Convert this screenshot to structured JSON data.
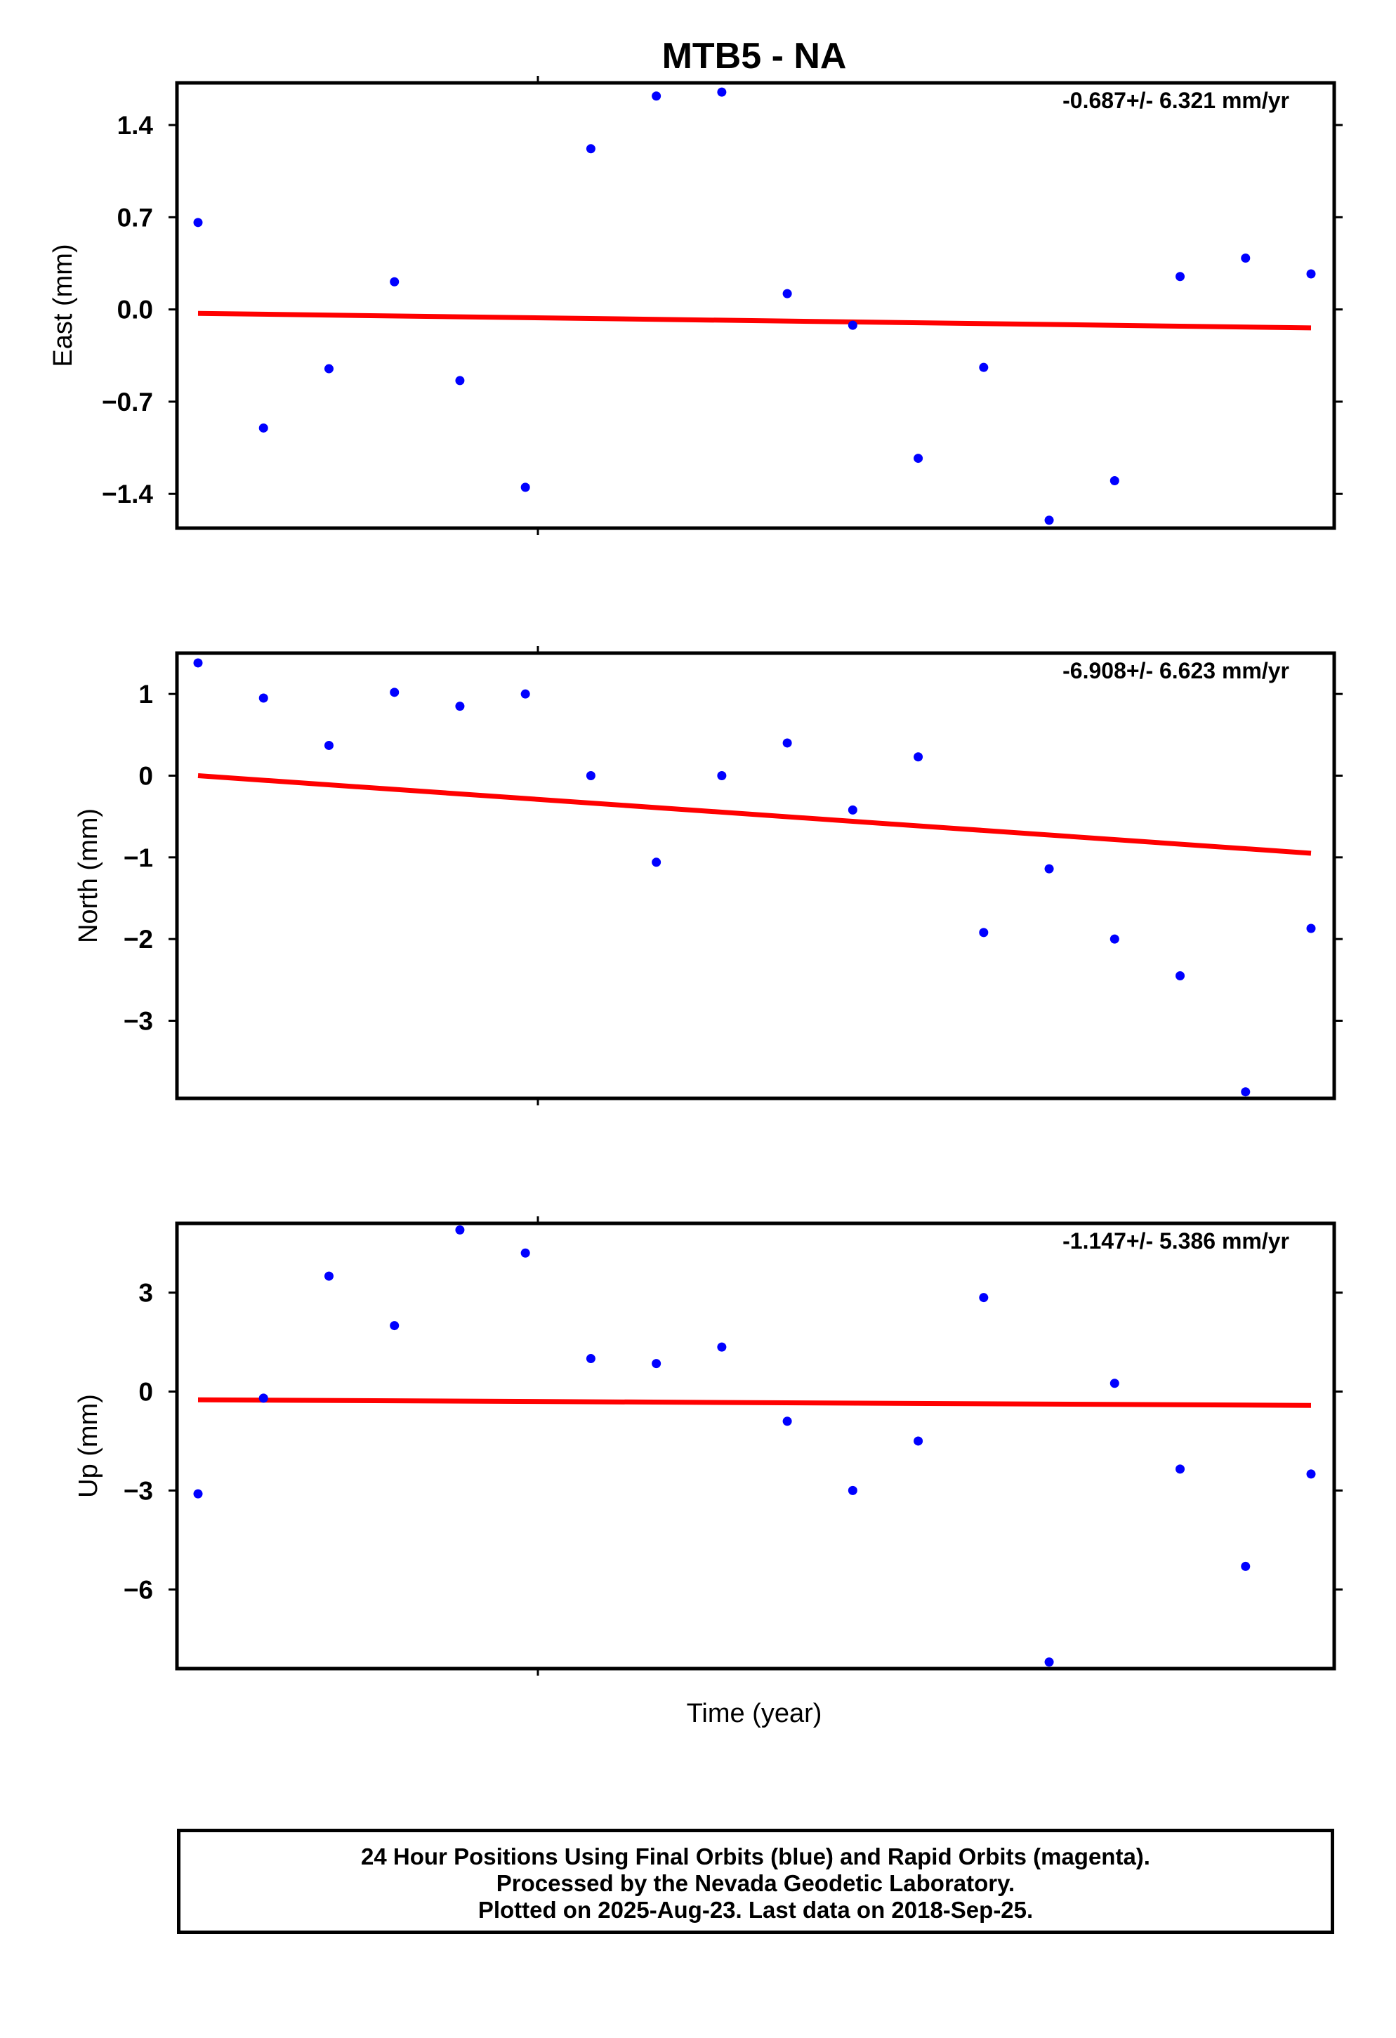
{
  "chart_data": {
    "type": "scatter",
    "title": "MTB5 - NA",
    "xlabel": "Time (year)",
    "point_color": "#0000ff",
    "fit_color": "#ff0000",
    "panels": [
      {
        "name": "east",
        "ylabel": "East (mm)",
        "rate_label": "-0.687+/- 6.321 mm/yr",
        "yticks": [
          1.4,
          0.7,
          0.0,
          -0.7,
          -1.4
        ],
        "ytick_labels": [
          "1.4",
          "0.7",
          "0.0",
          "−0.7",
          "−1.4"
        ],
        "ylim": [
          -1.66,
          1.72
        ],
        "values": [
          0.66,
          -0.9,
          -0.45,
          0.21,
          -0.54,
          -1.35,
          1.22,
          1.62,
          1.65,
          0.12,
          -0.12,
          -1.13,
          -0.44,
          -1.6,
          -1.3,
          0.25,
          0.39,
          0.27
        ],
        "fit": [
          -0.03,
          -0.14
        ]
      },
      {
        "name": "north",
        "ylabel": "North (mm)",
        "rate_label": "-6.908+/- 6.623 mm/yr",
        "yticks": [
          1,
          0,
          -1,
          -2,
          -3
        ],
        "ytick_labels": [
          "1",
          "0",
          "−1",
          "−2",
          "−3"
        ],
        "ylim": [
          -3.95,
          1.5
        ],
        "values": [
          1.38,
          0.95,
          0.37,
          1.02,
          0.85,
          1.0,
          0.0,
          -1.06,
          0.0,
          0.4,
          -0.42,
          0.23,
          -1.92,
          -1.14,
          -2.0,
          -2.45,
          -3.87,
          -1.87
        ],
        "fit": [
          0.0,
          -0.95
        ]
      },
      {
        "name": "up",
        "ylabel": "Up (mm)",
        "rate_label": "-1.147+/- 5.386 mm/yr",
        "yticks": [
          3,
          0,
          -3,
          -6
        ],
        "ytick_labels": [
          "3",
          "0",
          "−3",
          "−6"
        ],
        "ylim": [
          -8.4,
          5.1
        ],
        "values": [
          -3.1,
          -0.2,
          3.5,
          2.0,
          4.9,
          4.2,
          1.0,
          0.85,
          1.35,
          -0.9,
          -3.0,
          -1.5,
          2.85,
          -8.2,
          0.25,
          -2.35,
          -5.3,
          -2.5
        ],
        "fit": [
          -0.25,
          -0.42
        ]
      }
    ]
  },
  "footer": {
    "line1": "24 Hour Positions Using Final Orbits (blue) and Rapid Orbits (magenta).",
    "line2": "Processed by the Nevada Geodetic Laboratory.",
    "line3": "Plotted on 2025-Aug-23. Last data on 2018-Sep-25."
  }
}
